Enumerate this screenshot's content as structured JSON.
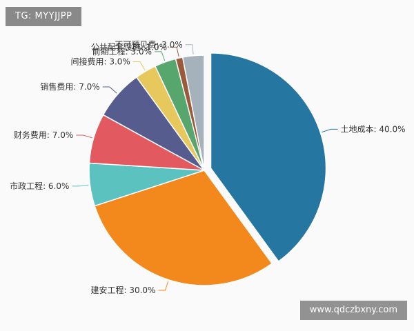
{
  "overlay": {
    "badge": "TG: MYYJJPP",
    "watermark": "www.qdczbxny.com"
  },
  "chart_data": {
    "type": "pie",
    "title": "",
    "start_angle_deg": 0,
    "exploded": [
      "土地成本"
    ],
    "slices": [
      {
        "name": "土地成本",
        "value": 40.0,
        "label": "土地成本: 40.0%",
        "color": "#2576a0"
      },
      {
        "name": "建安工程",
        "value": 30.0,
        "label": "建安工程: 30.0%",
        "color": "#f3891d"
      },
      {
        "name": "市政工程",
        "value": 6.0,
        "label": "市政工程: 6.0%",
        "color": "#5bc2c0"
      },
      {
        "name": "财务费用",
        "value": 7.0,
        "label": "财务费用: 7.0%",
        "color": "#e25a5f"
      },
      {
        "name": "销售费用",
        "value": 7.0,
        "label": "销售费用: 7.0%",
        "color": "#565c8d"
      },
      {
        "name": "间接费用",
        "value": 3.0,
        "label": "间接费用: 3.0%",
        "color": "#e6c85c"
      },
      {
        "name": "前期工程",
        "value": 3.0,
        "label": "前期工程: 3.0%",
        "color": "#57a66e"
      },
      {
        "name": "公共配套设施",
        "value": 1.0,
        "label": "公共配套设施: 1.0%",
        "color": "#9a5b3c"
      },
      {
        "name": "不可预见费",
        "value": 3.0,
        "label": "不可预见费: 3.0%",
        "color": "#a6b2bb"
      }
    ]
  }
}
